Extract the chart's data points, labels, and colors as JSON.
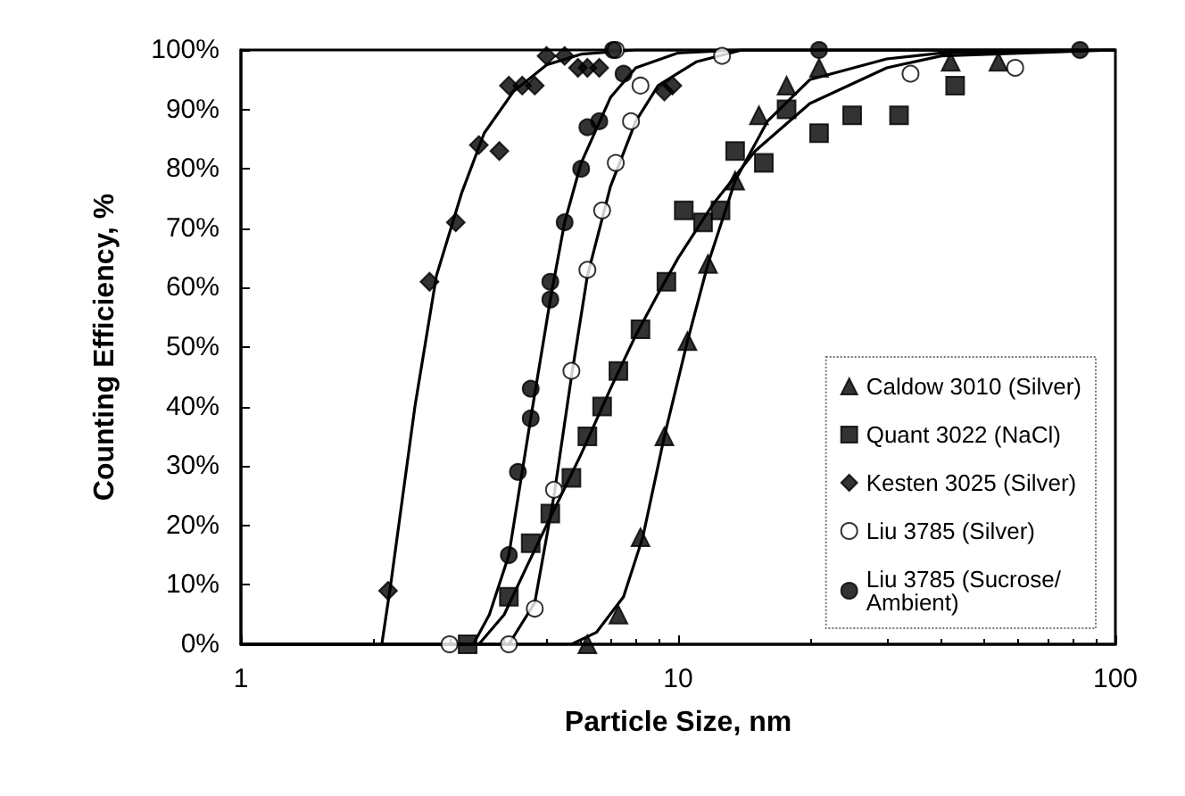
{
  "chart_data": {
    "type": "scatter",
    "xlabel": "Particle Size, nm",
    "ylabel": "Counting Efficiency, %",
    "log": "x",
    "xlim": [
      1,
      100
    ],
    "xticks": [
      1,
      10,
      100
    ],
    "ylim": [
      0,
      100
    ],
    "yticks": [
      {
        "value": 0,
        "label": "0%"
      },
      {
        "value": 10,
        "label": "10%"
      },
      {
        "value": 20,
        "label": "20%"
      },
      {
        "value": 30,
        "label": "30%"
      },
      {
        "value": 40,
        "label": "40%"
      },
      {
        "value": 50,
        "label": "50%"
      },
      {
        "value": 60,
        "label": "60%"
      },
      {
        "value": 70,
        "label": "70%"
      },
      {
        "value": 80,
        "label": "80%"
      },
      {
        "value": 90,
        "label": "90%"
      },
      {
        "value": 100,
        "label": "100%"
      }
    ],
    "grid": false,
    "legend": "bottom right",
    "series": [
      {
        "name": "Caldow 3010 (Silver)",
        "color": "#000000",
        "marker": "triangle",
        "x": [
          6.2,
          7.3,
          8.2,
          9.3,
          10.5,
          11.7,
          13.5,
          15.3,
          17.7,
          21,
          42,
          54
        ],
        "values": [
          0,
          5,
          18,
          35,
          51,
          64,
          78,
          89,
          94,
          97,
          98,
          98
        ]
      },
      {
        "name": "Quant 3022 (NaCl)",
        "color": "#000000",
        "marker": "square",
        "x": [
          3.3,
          4.1,
          4.6,
          5.1,
          5.7,
          6.2,
          6.7,
          7.3,
          8.2,
          9.4,
          10.3,
          11.4,
          12.5,
          13.5,
          15.7,
          17.7,
          21,
          25,
          32,
          43
        ],
        "values": [
          0,
          8,
          17,
          22,
          28,
          35,
          40,
          46,
          53,
          61,
          73,
          71,
          73,
          83,
          81,
          90,
          86,
          89,
          89,
          94
        ]
      },
      {
        "name": "Kesten 3025 (Silver)",
        "color": "#000000",
        "marker": "diamond",
        "x": [
          2.17,
          2.7,
          3.1,
          3.5,
          3.9,
          4.1,
          4.4,
          4.7,
          5,
          5.5,
          5.9,
          6.2,
          6.6,
          9.3,
          9.7
        ],
        "values": [
          9,
          61,
          71,
          84,
          83,
          94,
          94,
          94,
          99,
          99,
          97,
          97,
          97,
          93,
          94
        ]
      },
      {
        "name": "Liu 3785 (Silver)",
        "color": "#ffffff",
        "marker": "circle",
        "x": [
          3,
          4.1,
          4.7,
          5.2,
          5.7,
          6.2,
          6.7,
          7.2,
          7.8,
          8.2,
          7.2,
          12.6,
          34,
          59
        ],
        "values": [
          0,
          0,
          6,
          26,
          46,
          63,
          73,
          81,
          88,
          94,
          100,
          99,
          96,
          97
        ]
      },
      {
        "name": "Liu 3785 (Sucrose/Ambient)",
        "color": "#000000",
        "marker": "circle",
        "x": [
          4.1,
          4.3,
          4.6,
          4.6,
          5.1,
          5.1,
          5.5,
          6,
          6.2,
          6.6,
          7.5,
          7.1,
          21,
          83
        ],
        "values": [
          15,
          29,
          38,
          43,
          58,
          61,
          71,
          80,
          87,
          88,
          96,
          100,
          100,
          100
        ]
      },
      {
        "type": "line",
        "color": "#000000",
        "marker": "none",
        "x": [
          1,
          5.7,
          6.5,
          7.5,
          8.3,
          9.3,
          10.5,
          11.7,
          13.5,
          16,
          20,
          30,
          40,
          100
        ],
        "values": [
          0,
          0,
          2,
          8,
          18,
          35,
          51,
          64,
          78,
          88,
          95,
          98.5,
          99.5,
          100
        ]
      },
      {
        "type": "line",
        "color": "#000000",
        "marker": "none",
        "x": [
          1,
          3.5,
          4,
          4.5,
          5,
          6,
          7,
          8,
          9,
          10,
          12,
          15,
          20,
          30,
          40,
          100
        ],
        "values": [
          0,
          0,
          5,
          13,
          20,
          32,
          43,
          52,
          59,
          65,
          74,
          83,
          91,
          97,
          99,
          100
        ]
      },
      {
        "type": "line",
        "color": "#000000",
        "marker": "none",
        "x": [
          1,
          2.1,
          2.2,
          2.5,
          2.8,
          3.2,
          3.6,
          4.2,
          5,
          6,
          8,
          100
        ],
        "values": [
          0,
          0,
          10,
          40,
          62,
          76,
          86,
          93,
          97.5,
          99.3,
          100,
          100
        ]
      },
      {
        "type": "line",
        "color": "#000000",
        "marker": "none",
        "x": [
          1,
          4.1,
          4.7,
          5.2,
          5.7,
          6.2,
          7,
          8,
          9,
          11,
          14,
          100
        ],
        "values": [
          0,
          0,
          7,
          25,
          45,
          62,
          77,
          88,
          94,
          98,
          100,
          100
        ]
      },
      {
        "type": "line",
        "color": "#000000",
        "marker": "none",
        "x": [
          1,
          3.4,
          3.7,
          4.1,
          4.6,
          5.1,
          5.5,
          6,
          7,
          8,
          10,
          14,
          100
        ],
        "values": [
          0,
          0,
          5,
          15,
          38,
          58,
          71,
          81,
          92,
          97,
          99.5,
          100,
          100
        ]
      }
    ]
  }
}
